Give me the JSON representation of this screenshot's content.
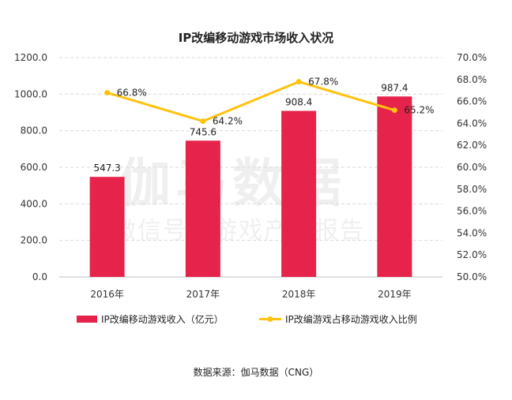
{
  "chart_data": {
    "type": "bar+line",
    "title": "IP改编移动游戏市场收入状况",
    "categories": [
      "2016年",
      "2017年",
      "2018年",
      "2019年"
    ],
    "series": [
      {
        "name": "IP改编移动游戏收入（亿元）",
        "type": "bar",
        "axis": "left",
        "color": "#e6234a",
        "values": [
          547.3,
          745.6,
          908.4,
          987.4
        ],
        "labels": [
          "547.3",
          "745.6",
          "908.4",
          "987.4"
        ]
      },
      {
        "name": "IP改编游戏占移动游戏收入比例",
        "type": "line",
        "axis": "right",
        "color": "#ffc20e",
        "values": [
          66.8,
          64.2,
          67.8,
          65.2
        ],
        "labels": [
          "66.8%",
          "64.2%",
          "67.8%",
          "65.2%"
        ]
      }
    ],
    "y_left": {
      "min": 0,
      "max": 1200,
      "ticks": [
        "0.0",
        "200.0",
        "400.0",
        "600.0",
        "800.0",
        "1000.0",
        "1200.0"
      ]
    },
    "y_right": {
      "min": 50,
      "max": 70,
      "ticks": [
        "50.0%",
        "52.0%",
        "54.0%",
        "56.0%",
        "58.0%",
        "60.0%",
        "62.0%",
        "64.0%",
        "66.0%",
        "68.0%",
        "70.0%"
      ]
    },
    "grid": true,
    "legend": "bottom"
  },
  "watermark": {
    "brand": "伽马数据",
    "wechat": "微信号：游戏产业报告"
  },
  "source": "数据来源：伽马数据（CNG）"
}
